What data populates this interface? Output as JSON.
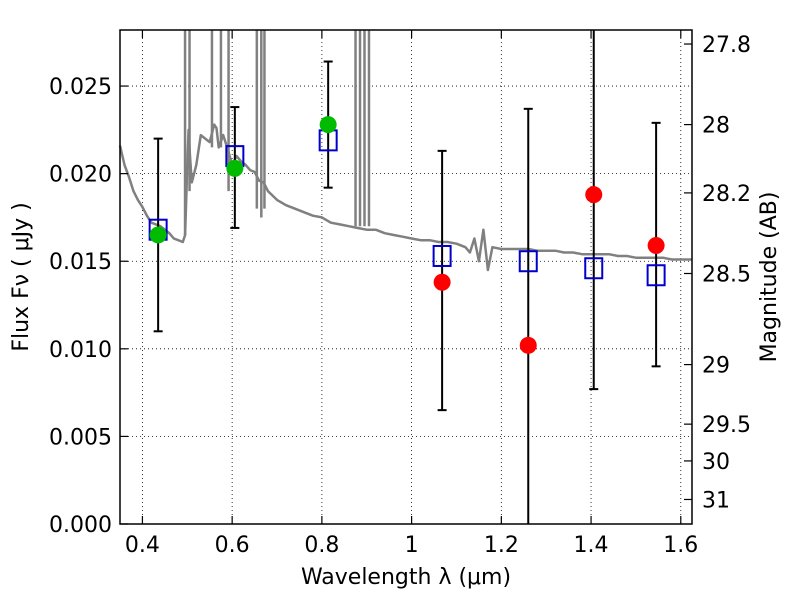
{
  "chart_data": {
    "type": "scatter",
    "xlabel": "Wavelength  λ (μm)",
    "ylabel_left": "Flux  Fν  ( μJy )",
    "ylabel_right": "Magnitude (AB)",
    "xlim": [
      0.35,
      1.625
    ],
    "ylim": [
      0.0,
      0.0282
    ],
    "x_ticks": [
      0.4,
      0.6,
      0.8,
      1.0,
      1.2,
      1.4,
      1.6
    ],
    "x_tick_labels": [
      "0.4",
      "0.6",
      "0.8",
      "1",
      "1.2",
      "1.4",
      "1.6"
    ],
    "y_ticks": [
      0.0,
      0.005,
      0.01,
      0.015,
      0.02,
      0.025
    ],
    "y_tick_labels": [
      "0.000",
      "0.005",
      "0.010",
      "0.015",
      "0.020",
      "0.025"
    ],
    "right_ticks": [
      {
        "label": "27.8",
        "flux": 0.0274
      },
      {
        "label": "28",
        "flux": 0.0228
      },
      {
        "label": "28.2",
        "flux": 0.0189
      },
      {
        "label": "28.5",
        "flux": 0.0143
      },
      {
        "label": "29",
        "flux": 0.0091
      },
      {
        "label": "29.5",
        "flux": 0.0057
      },
      {
        "label": "30",
        "flux": 0.0036
      },
      {
        "label": "31",
        "flux": 0.0014
      }
    ],
    "grid": true,
    "series": [
      {
        "name": "model spectrum",
        "type": "line",
        "color": "#808080",
        "x": [
          0.35,
          0.36,
          0.37,
          0.38,
          0.39,
          0.4,
          0.41,
          0.42,
          0.43,
          0.44,
          0.45,
          0.46,
          0.47,
          0.48,
          0.49,
          0.495,
          0.5,
          0.503,
          0.506,
          0.51,
          0.52,
          0.53,
          0.54,
          0.55,
          0.56,
          0.565,
          0.57,
          0.58,
          0.59,
          0.6,
          0.61,
          0.62,
          0.63,
          0.64,
          0.65,
          0.66,
          0.67,
          0.68,
          0.7,
          0.72,
          0.74,
          0.76,
          0.78,
          0.8,
          0.82,
          0.84,
          0.86,
          0.88,
          0.9,
          0.92,
          0.94,
          0.96,
          0.98,
          1.0,
          1.02,
          1.04,
          1.06,
          1.08,
          1.1,
          1.12,
          1.13,
          1.14,
          1.15,
          1.16,
          1.17,
          1.18,
          1.2,
          1.22,
          1.24,
          1.26,
          1.28,
          1.3,
          1.32,
          1.34,
          1.36,
          1.38,
          1.4,
          1.42,
          1.44,
          1.46,
          1.48,
          1.5,
          1.52,
          1.54,
          1.56,
          1.58,
          1.6,
          1.625
        ],
        "y": [
          0.0216,
          0.0205,
          0.0198,
          0.019,
          0.0185,
          0.0181,
          0.0176,
          0.0172,
          0.0171,
          0.017,
          0.0168,
          0.0166,
          0.0163,
          0.0162,
          0.0161,
          0.0165,
          0.0205,
          0.0225,
          0.021,
          0.0195,
          0.0205,
          0.0222,
          0.022,
          0.0218,
          0.0228,
          0.0226,
          0.0215,
          0.0222,
          0.0214,
          0.0205,
          0.021,
          0.0207,
          0.0205,
          0.0202,
          0.0201,
          0.0196,
          0.0195,
          0.019,
          0.0185,
          0.0182,
          0.018,
          0.0178,
          0.0176,
          0.0175,
          0.0172,
          0.0171,
          0.017,
          0.0169,
          0.0168,
          0.0168,
          0.0166,
          0.0165,
          0.0164,
          0.0163,
          0.0162,
          0.0162,
          0.0161,
          0.0161,
          0.016,
          0.0158,
          0.0155,
          0.0163,
          0.015,
          0.0168,
          0.0145,
          0.0158,
          0.0157,
          0.0157,
          0.0157,
          0.0157,
          0.0156,
          0.0156,
          0.0156,
          0.0155,
          0.0155,
          0.0154,
          0.0154,
          0.0154,
          0.0154,
          0.0153,
          0.0153,
          0.0152,
          0.0152,
          0.0152,
          0.0152,
          0.0151,
          0.0151,
          0.0151
        ]
      },
      {
        "name": "model spikes",
        "type": "vlines",
        "color": "#808080",
        "x": [
          0.495,
          0.505,
          0.555,
          0.575,
          0.592,
          0.655,
          0.665,
          0.672,
          0.875,
          0.885,
          0.895,
          0.905
        ],
        "y_from": [
          0.0165,
          0.019,
          0.0215,
          0.0215,
          0.019,
          0.018,
          0.0175,
          0.018,
          0.017,
          0.017,
          0.017,
          0.017
        ],
        "y_to": [
          0.0282,
          0.0282,
          0.0282,
          0.0282,
          0.0282,
          0.0282,
          0.0282,
          0.0282,
          0.0282,
          0.0282,
          0.0282,
          0.0282
        ]
      },
      {
        "name": "model photometry",
        "type": "scatter",
        "marker": "open-square",
        "color": "#0000cc",
        "x": [
          0.435,
          0.606,
          0.814,
          1.068,
          1.26,
          1.406,
          1.545
        ],
        "y": [
          0.0168,
          0.021,
          0.0219,
          0.0153,
          0.015,
          0.0146,
          0.0142
        ]
      },
      {
        "name": "observed flux",
        "type": "scatter",
        "marker": "filled-circle",
        "x": [
          0.435,
          0.606,
          0.814,
          1.068,
          1.26,
          1.406,
          1.545
        ],
        "y": [
          0.0165,
          0.0203,
          0.0228,
          0.0138,
          0.0102,
          0.0188,
          0.0159
        ],
        "colors": [
          "#00bb00",
          "#00bb00",
          "#00bb00",
          "#ff0000",
          "#ff0000",
          "#ff0000",
          "#ff0000"
        ],
        "yerr_low": [
          0.011,
          0.0169,
          0.0192,
          0.0065,
          0.0,
          0.0077,
          0.009
        ],
        "yerr_high": [
          0.022,
          0.0238,
          0.0264,
          0.0213,
          0.0237,
          0.0282,
          0.0229
        ]
      }
    ]
  }
}
